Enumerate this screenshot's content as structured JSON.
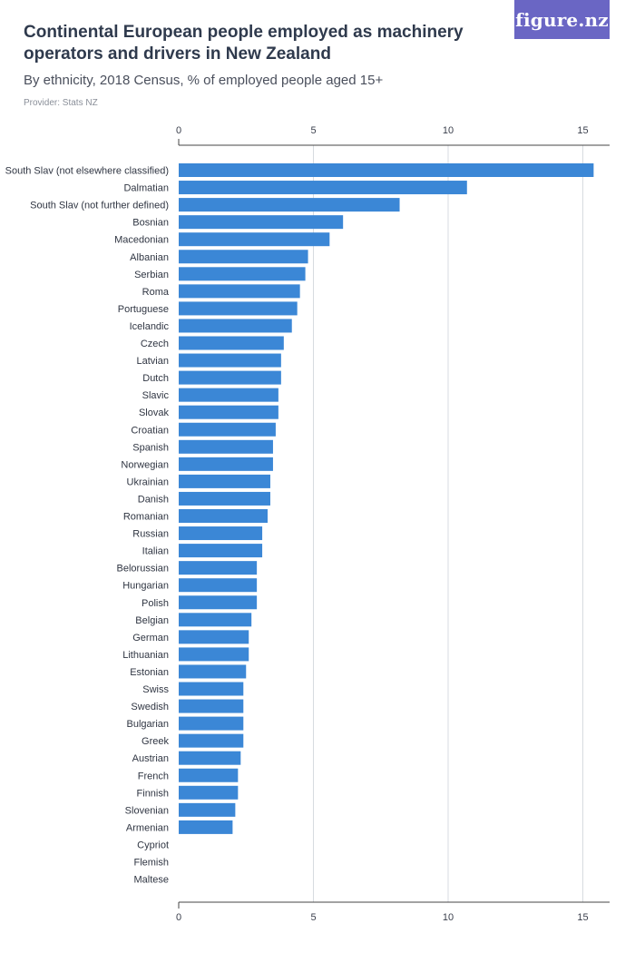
{
  "header": {
    "title": "Continental European people employed as machinery operators and drivers in New Zealand",
    "subtitle": "By ethnicity, 2018 Census, % of employed people aged 15+",
    "provider": "Provider: Stats NZ",
    "logo_text": "figure.nz"
  },
  "colors": {
    "bar": "#3b87d6",
    "grid": "#d7dbe0",
    "axis": "#444444",
    "logo_bg": "#6a66c4"
  },
  "chart_data": {
    "type": "bar",
    "orientation": "horizontal",
    "title": "Continental European people employed as machinery operators and drivers in New Zealand",
    "subtitle": "By ethnicity, 2018 Census, % of employed people aged 15+",
    "xlim": [
      0,
      16
    ],
    "x_ticks": [
      0,
      5,
      10,
      15
    ],
    "axis_labels_position": "top and bottom",
    "grid": true,
    "categories": [
      "South Slav (not elsewhere classified)",
      "Dalmatian",
      "South Slav (not further defined)",
      "Bosnian",
      "Macedonian",
      "Albanian",
      "Serbian",
      "Roma",
      "Portuguese",
      "Icelandic",
      "Czech",
      "Latvian",
      "Dutch",
      "Slavic",
      "Slovak",
      "Croatian",
      "Spanish",
      "Norwegian",
      "Ukrainian",
      "Danish",
      "Romanian",
      "Russian",
      "Italian",
      "Belorussian",
      "Hungarian",
      "Polish",
      "Belgian",
      "German",
      "Lithuanian",
      "Estonian",
      "Swiss",
      "Swedish",
      "Bulgarian",
      "Greek",
      "Austrian",
      "French",
      "Finnish",
      "Slovenian",
      "Armenian",
      "Cypriot",
      "Flemish",
      "Maltese"
    ],
    "values": [
      15.4,
      10.7,
      8.2,
      6.1,
      5.6,
      4.8,
      4.7,
      4.5,
      4.4,
      4.2,
      3.9,
      3.8,
      3.8,
      3.7,
      3.7,
      3.6,
      3.5,
      3.5,
      3.4,
      3.4,
      3.3,
      3.1,
      3.1,
      2.9,
      2.9,
      2.9,
      2.7,
      2.6,
      2.6,
      2.5,
      2.4,
      2.4,
      2.4,
      2.4,
      2.3,
      2.2,
      2.2,
      2.1,
      2.0,
      0,
      0,
      0
    ]
  }
}
